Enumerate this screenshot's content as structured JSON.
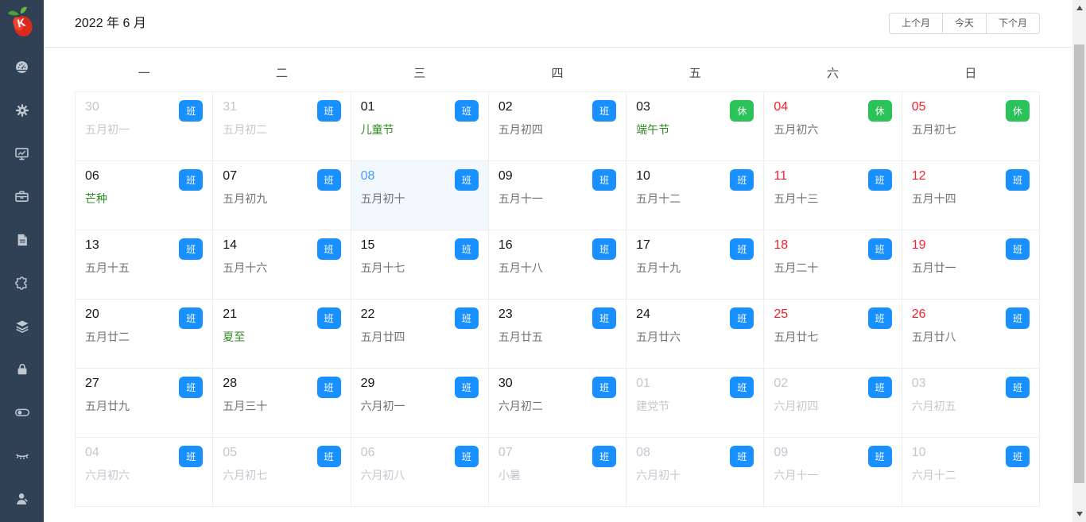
{
  "header": {
    "title": "2022 年 6 月",
    "prev_button": "上个月",
    "today_button": "今天",
    "next_button": "下个月"
  },
  "sidebar": {
    "icons": [
      "dashboard-icon",
      "gear-icon",
      "monitor-icon",
      "toolbox-icon",
      "document-icon",
      "puzzle-icon",
      "layers-icon",
      "lock-icon",
      "toggle-icon",
      "eye-closed-icon",
      "user-icon"
    ],
    "logo": "K"
  },
  "calendar": {
    "weekdays": [
      "一",
      "二",
      "三",
      "四",
      "五",
      "六",
      "日"
    ],
    "badge_work": "班",
    "badge_rest": "休",
    "cells": [
      {
        "day": "30",
        "text": "五月初一",
        "badge": "班",
        "out": true
      },
      {
        "day": "31",
        "text": "五月初二",
        "badge": "班",
        "out": true
      },
      {
        "day": "01",
        "text": "儿童节",
        "badge": "班",
        "green": true
      },
      {
        "day": "02",
        "text": "五月初四",
        "badge": "班"
      },
      {
        "day": "03",
        "text": "端午节",
        "badge": "休",
        "green": true
      },
      {
        "day": "04",
        "text": "五月初六",
        "badge": "休",
        "red": true
      },
      {
        "day": "05",
        "text": "五月初七",
        "badge": "休",
        "red": true
      },
      {
        "day": "06",
        "text": "芒种",
        "badge": "班",
        "green": true
      },
      {
        "day": "07",
        "text": "五月初九",
        "badge": "班"
      },
      {
        "day": "08",
        "text": "五月初十",
        "badge": "班",
        "today": true
      },
      {
        "day": "09",
        "text": "五月十一",
        "badge": "班"
      },
      {
        "day": "10",
        "text": "五月十二",
        "badge": "班"
      },
      {
        "day": "11",
        "text": "五月十三",
        "badge": "班",
        "red": true
      },
      {
        "day": "12",
        "text": "五月十四",
        "badge": "班",
        "red": true
      },
      {
        "day": "13",
        "text": "五月十五",
        "badge": "班"
      },
      {
        "day": "14",
        "text": "五月十六",
        "badge": "班"
      },
      {
        "day": "15",
        "text": "五月十七",
        "badge": "班"
      },
      {
        "day": "16",
        "text": "五月十八",
        "badge": "班"
      },
      {
        "day": "17",
        "text": "五月十九",
        "badge": "班"
      },
      {
        "day": "18",
        "text": "五月二十",
        "badge": "班",
        "red": true
      },
      {
        "day": "19",
        "text": "五月廿一",
        "badge": "班",
        "red": true
      },
      {
        "day": "20",
        "text": "五月廿二",
        "badge": "班"
      },
      {
        "day": "21",
        "text": "夏至",
        "badge": "班",
        "green": true
      },
      {
        "day": "22",
        "text": "五月廿四",
        "badge": "班"
      },
      {
        "day": "23",
        "text": "五月廿五",
        "badge": "班"
      },
      {
        "day": "24",
        "text": "五月廿六",
        "badge": "班"
      },
      {
        "day": "25",
        "text": "五月廿七",
        "badge": "班",
        "red": true
      },
      {
        "day": "26",
        "text": "五月廿八",
        "badge": "班",
        "red": true
      },
      {
        "day": "27",
        "text": "五月廿九",
        "badge": "班"
      },
      {
        "day": "28",
        "text": "五月三十",
        "badge": "班"
      },
      {
        "day": "29",
        "text": "六月初一",
        "badge": "班"
      },
      {
        "day": "30",
        "text": "六月初二",
        "badge": "班"
      },
      {
        "day": "01",
        "text": "建党节",
        "badge": "班",
        "out": true
      },
      {
        "day": "02",
        "text": "六月初四",
        "badge": "班",
        "out": true
      },
      {
        "day": "03",
        "text": "六月初五",
        "badge": "班",
        "out": true
      },
      {
        "day": "04",
        "text": "六月初六",
        "badge": "班",
        "out": true
      },
      {
        "day": "05",
        "text": "六月初七",
        "badge": "班",
        "out": true
      },
      {
        "day": "06",
        "text": "六月初八",
        "badge": "班",
        "out": true
      },
      {
        "day": "07",
        "text": "小暑",
        "badge": "班",
        "out": true
      },
      {
        "day": "08",
        "text": "六月初十",
        "badge": "班",
        "out": true
      },
      {
        "day": "09",
        "text": "六月十一",
        "badge": "班",
        "out": true
      },
      {
        "day": "10",
        "text": "六月十二",
        "badge": "班",
        "out": true
      }
    ]
  },
  "colors": {
    "sidebar_bg": "#304156",
    "badge_work_blue": "#1890ff",
    "badge_rest_green": "#2cc25a",
    "weekend_red": "#f5222d",
    "today_blue": "#409eff",
    "festival_green": "#2e8b23"
  }
}
